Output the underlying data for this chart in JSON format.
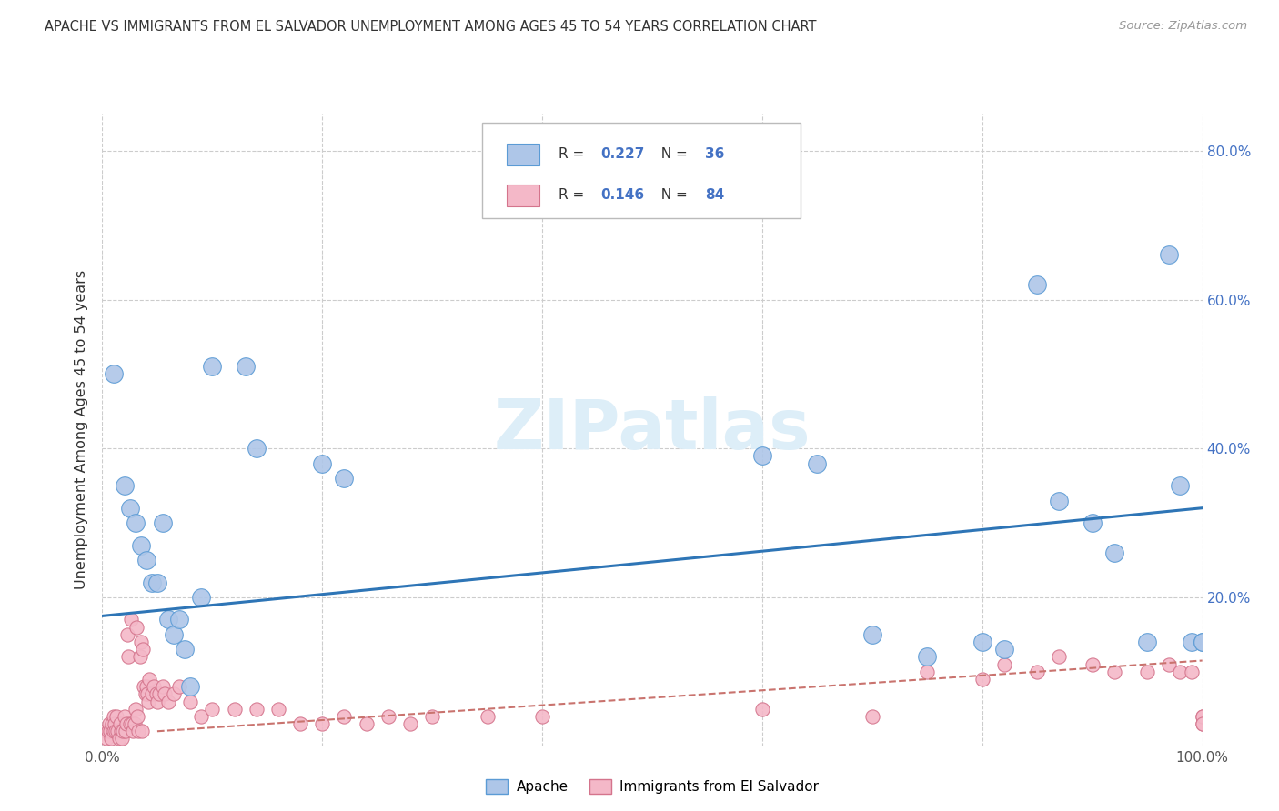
{
  "title": "APACHE VS IMMIGRANTS FROM EL SALVADOR UNEMPLOYMENT AMONG AGES 45 TO 54 YEARS CORRELATION CHART",
  "source": "Source: ZipAtlas.com",
  "ylabel": "Unemployment Among Ages 45 to 54 years",
  "xlim": [
    0,
    1.0
  ],
  "ylim": [
    0,
    0.85
  ],
  "yticks": [
    0.0,
    0.2,
    0.4,
    0.6,
    0.8
  ],
  "yticklabels_right": [
    "",
    "20.0%",
    "40.0%",
    "60.0%",
    "80.0%"
  ],
  "xtick_left_label": "0.0%",
  "xtick_right_label": "100.0%",
  "apache_R": "0.227",
  "apache_N": "36",
  "salvador_R": "0.146",
  "salvador_N": "84",
  "apache_color": "#aec6e8",
  "apache_edge_color": "#5b9bd5",
  "salvador_color": "#f4b8c8",
  "salvador_edge_color": "#d4748c",
  "trend_apache_color": "#2e75b6",
  "trend_salvador_color": "#c9736e",
  "legend_blue": "#4472c4",
  "watermark_color": "#ddeef8",
  "watermark": "ZIPatlas",
  "apache_x": [
    0.01,
    0.02,
    0.025,
    0.03,
    0.035,
    0.04,
    0.045,
    0.05,
    0.055,
    0.06,
    0.065,
    0.07,
    0.075,
    0.08,
    0.09,
    0.1,
    0.13,
    0.14,
    0.2,
    0.22,
    0.6,
    0.65,
    0.7,
    0.75,
    0.8,
    0.82,
    0.85,
    0.87,
    0.9,
    0.92,
    0.95,
    0.97,
    0.98,
    0.99,
    1.0,
    1.0
  ],
  "apache_y": [
    0.5,
    0.35,
    0.32,
    0.3,
    0.27,
    0.25,
    0.22,
    0.22,
    0.3,
    0.17,
    0.15,
    0.17,
    0.13,
    0.08,
    0.2,
    0.51,
    0.51,
    0.4,
    0.38,
    0.36,
    0.39,
    0.38,
    0.15,
    0.12,
    0.14,
    0.13,
    0.62,
    0.33,
    0.3,
    0.26,
    0.14,
    0.66,
    0.35,
    0.14,
    0.14,
    0.14
  ],
  "salvador_x": [
    0.003,
    0.004,
    0.005,
    0.006,
    0.007,
    0.008,
    0.009,
    0.01,
    0.01,
    0.011,
    0.012,
    0.013,
    0.014,
    0.015,
    0.016,
    0.017,
    0.018,
    0.019,
    0.02,
    0.021,
    0.022,
    0.023,
    0.024,
    0.025,
    0.026,
    0.027,
    0.028,
    0.029,
    0.03,
    0.031,
    0.032,
    0.033,
    0.034,
    0.035,
    0.036,
    0.037,
    0.038,
    0.039,
    0.04,
    0.041,
    0.042,
    0.043,
    0.045,
    0.047,
    0.049,
    0.05,
    0.052,
    0.055,
    0.057,
    0.06,
    0.065,
    0.07,
    0.08,
    0.09,
    0.1,
    0.12,
    0.14,
    0.16,
    0.18,
    0.2,
    0.22,
    0.24,
    0.26,
    0.28,
    0.3,
    0.35,
    0.4,
    0.6,
    0.7,
    0.75,
    0.8,
    0.82,
    0.85,
    0.87,
    0.9,
    0.92,
    0.95,
    0.97,
    0.98,
    0.99,
    1.0,
    1.0,
    1.0,
    1.0
  ],
  "salvador_y": [
    0.02,
    0.01,
    0.02,
    0.03,
    0.02,
    0.01,
    0.03,
    0.04,
    0.02,
    0.03,
    0.02,
    0.04,
    0.02,
    0.01,
    0.03,
    0.02,
    0.01,
    0.02,
    0.04,
    0.02,
    0.03,
    0.15,
    0.12,
    0.03,
    0.17,
    0.03,
    0.02,
    0.03,
    0.05,
    0.16,
    0.04,
    0.02,
    0.12,
    0.14,
    0.02,
    0.13,
    0.08,
    0.07,
    0.08,
    0.07,
    0.06,
    0.09,
    0.07,
    0.08,
    0.07,
    0.06,
    0.07,
    0.08,
    0.07,
    0.06,
    0.07,
    0.08,
    0.06,
    0.04,
    0.05,
    0.05,
    0.05,
    0.05,
    0.03,
    0.03,
    0.04,
    0.03,
    0.04,
    0.03,
    0.04,
    0.04,
    0.04,
    0.05,
    0.04,
    0.1,
    0.09,
    0.11,
    0.1,
    0.12,
    0.11,
    0.1,
    0.1,
    0.11,
    0.1,
    0.1,
    0.04,
    0.03,
    0.04,
    0.03
  ]
}
